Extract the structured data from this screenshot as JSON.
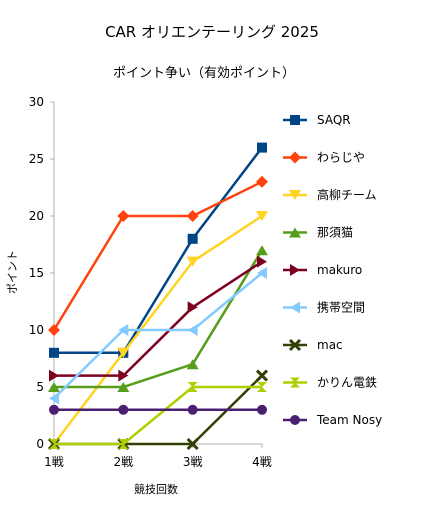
{
  "chart_data": {
    "type": "line",
    "title": "CAR オリエンテーリング 2025",
    "subtitle": "ポイント争い（有効ポイント）",
    "xlabel": "競技回数",
    "ylabel": "ポイント",
    "categories": [
      "1戦",
      "2戦",
      "3戦",
      "4戦"
    ],
    "ylim": [
      0,
      30
    ],
    "yticks": [
      0,
      5,
      10,
      15,
      20,
      25,
      30
    ],
    "grid": false,
    "legend_position": "right",
    "series": [
      {
        "name": "SAQR",
        "values": [
          8,
          8,
          18,
          26
        ],
        "color": "#004586",
        "marker": "square"
      },
      {
        "name": "わらじや",
        "values": [
          10,
          20,
          20,
          23
        ],
        "color": "#ff420e",
        "marker": "diamond"
      },
      {
        "name": "高柳チーム",
        "values": [
          0,
          8,
          16,
          20
        ],
        "color": "#ffd320",
        "marker": "triangle-down"
      },
      {
        "name": "那須猫",
        "values": [
          5,
          5,
          7,
          17
        ],
        "color": "#579d1c",
        "marker": "triangle-up"
      },
      {
        "name": "makuro",
        "values": [
          6,
          6,
          12,
          16
        ],
        "color": "#7e0021",
        "marker": "triangle-right"
      },
      {
        "name": "携帯空間",
        "values": [
          4,
          10,
          10,
          15
        ],
        "color": "#83caff",
        "marker": "triangle-left"
      },
      {
        "name": "mac",
        "values": [
          0,
          0,
          0,
          6
        ],
        "color": "#314004",
        "marker": "x"
      },
      {
        "name": "かりん電鉄",
        "values": [
          0,
          0,
          5,
          5
        ],
        "color": "#aecf00",
        "marker": "hourglass"
      },
      {
        "name": "Team Nosy",
        "values": [
          3,
          3,
          3,
          3
        ],
        "color": "#4b1f6f",
        "marker": "circle"
      }
    ]
  }
}
